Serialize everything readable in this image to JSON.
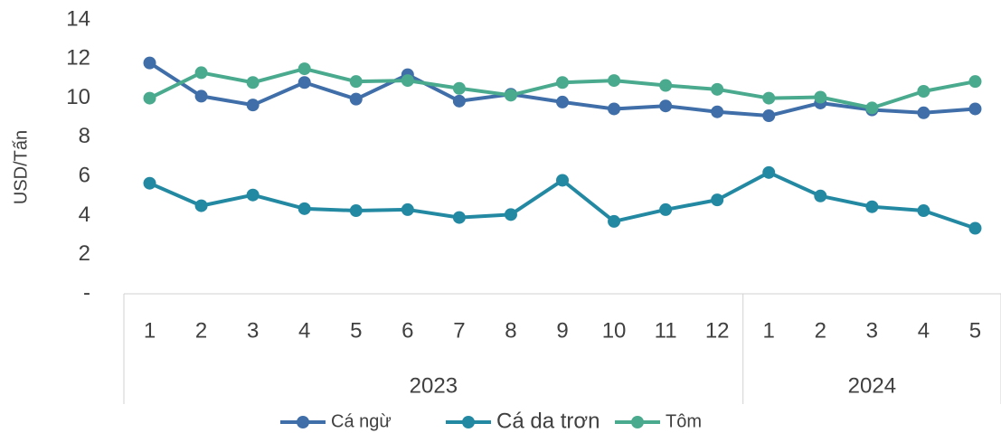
{
  "chart_data": {
    "type": "line",
    "ylabel": "USD/Tấn",
    "groups": [
      {
        "label": "2023",
        "categories": [
          "1",
          "2",
          "3",
          "4",
          "5",
          "6",
          "7",
          "8",
          "9",
          "10",
          "11",
          "12"
        ]
      },
      {
        "label": "2024",
        "categories": [
          "1",
          "2",
          "3",
          "4",
          "5"
        ]
      }
    ],
    "series": [
      {
        "name": "Cá ngừ",
        "color": "#3f6ea8",
        "values": [
          11.8,
          10.1,
          9.65,
          10.8,
          9.95,
          11.2,
          9.85,
          10.2,
          9.8,
          9.45,
          9.6,
          9.3,
          9.1,
          9.75,
          9.4,
          9.25,
          9.45
        ]
      },
      {
        "name": "Cá da trơn",
        "color": "#2389a3",
        "values": [
          5.65,
          4.5,
          5.05,
          4.35,
          4.25,
          4.3,
          3.9,
          4.05,
          5.8,
          3.7,
          4.3,
          4.8,
          6.2,
          5.0,
          4.45,
          4.25,
          3.35
        ]
      },
      {
        "name": "Tôm",
        "color": "#4aaa8e",
        "values": [
          10.0,
          11.3,
          10.8,
          11.5,
          10.85,
          10.9,
          10.5,
          10.15,
          10.8,
          10.9,
          10.65,
          10.45,
          10.0,
          10.05,
          9.5,
          10.35,
          10.85
        ]
      }
    ],
    "ylim": [
      0,
      14
    ],
    "yticks": [
      {
        "value": 0,
        "label": "-"
      },
      2,
      4,
      6,
      8,
      10,
      12,
      14
    ],
    "legend": "bottom"
  }
}
